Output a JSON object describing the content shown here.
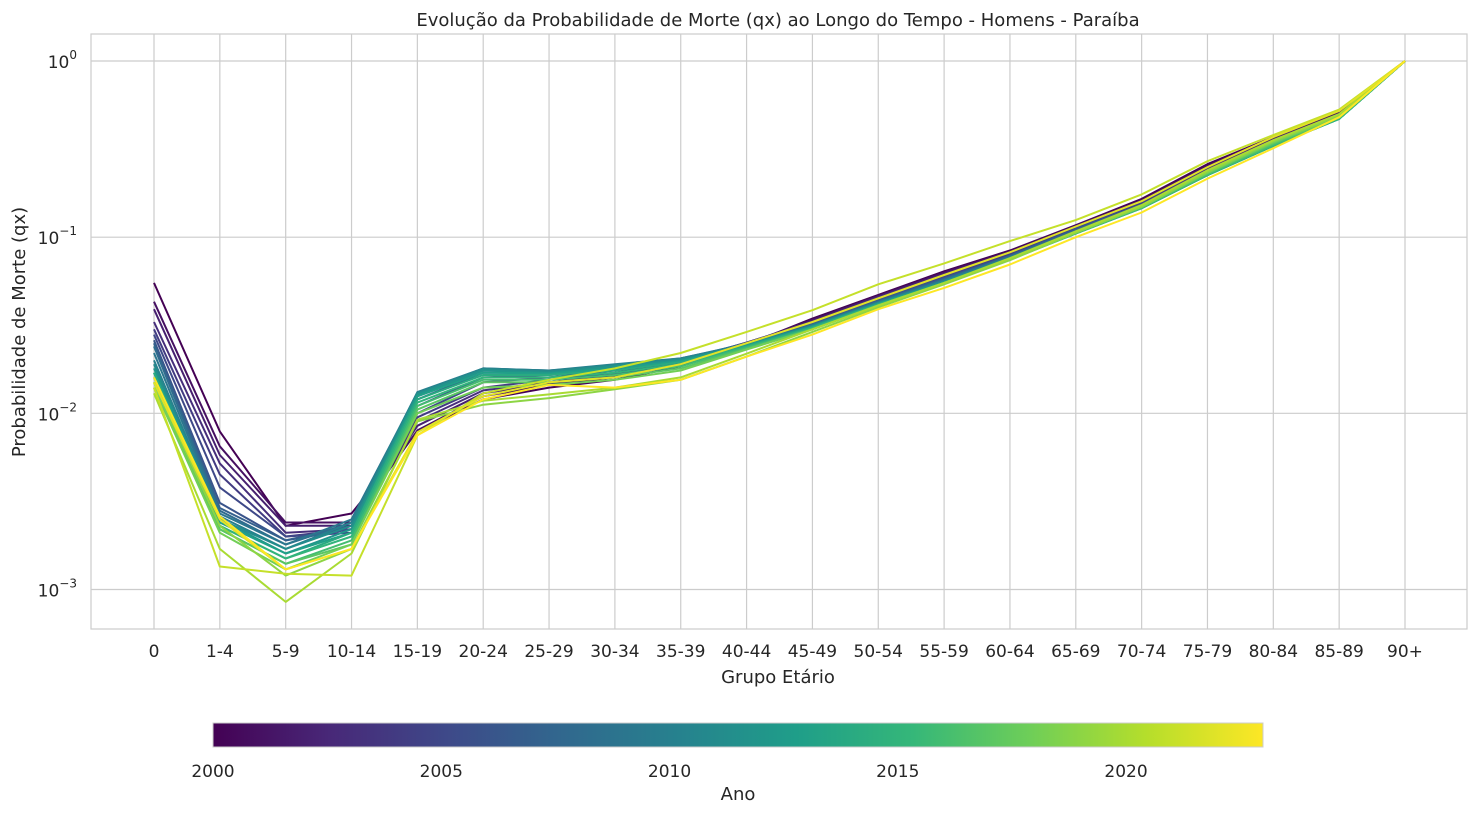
{
  "chart_data": {
    "type": "line",
    "title": "Evolução da Probabilidade de Morte (qx) ao Longo do Tempo - Homens - Paraíba",
    "xlabel": "Grupo Etário",
    "ylabel": "Probabilidade de Morte (qx)",
    "yscale": "log",
    "ylim": [
      0.0006,
      1.4
    ],
    "y_ticks": [
      {
        "value": 0.001,
        "base": "10",
        "exp": "−3"
      },
      {
        "value": 0.01,
        "base": "10",
        "exp": "−2"
      },
      {
        "value": 0.1,
        "base": "10",
        "exp": "−1"
      },
      {
        "value": 1,
        "base": "10",
        "exp": "0"
      }
    ],
    "grid": true,
    "categories": [
      "0",
      "1-4",
      "5-9",
      "10-14",
      "15-19",
      "20-24",
      "25-29",
      "30-34",
      "35-39",
      "40-44",
      "45-49",
      "50-54",
      "55-59",
      "60-64",
      "65-69",
      "70-74",
      "75-79",
      "80-84",
      "85-89",
      "90+"
    ],
    "colormap": "viridis",
    "colorbar": {
      "label": "Ano",
      "min": 2000,
      "max": 2023,
      "ticks": [
        "2000",
        "2005",
        "2010",
        "2015",
        "2020"
      ],
      "tick_values": [
        2000,
        2005,
        2010,
        2015,
        2020
      ],
      "colors": [
        "#440154",
        "#482878",
        "#3e4989",
        "#31688e",
        "#26828e",
        "#1f9e89",
        "#35b779",
        "#6ece58",
        "#b5de2b",
        "#fde725"
      ]
    },
    "series": [
      {
        "year": 2000,
        "values": [
          0.055,
          0.0079,
          0.0023,
          0.0027,
          0.0079,
          0.012,
          0.014,
          0.0155,
          0.0185,
          0.0245,
          0.0345,
          0.047,
          0.064,
          0.084,
          0.117,
          0.165,
          0.26,
          0.37,
          0.52,
          1.0
        ]
      },
      {
        "year": 2001,
        "values": [
          0.043,
          0.0065,
          0.0024,
          0.0024,
          0.008,
          0.0125,
          0.0145,
          0.016,
          0.019,
          0.0248,
          0.034,
          0.0465,
          0.063,
          0.083,
          0.116,
          0.162,
          0.255,
          0.365,
          0.51,
          1.0
        ]
      },
      {
        "year": 2002,
        "values": [
          0.039,
          0.0058,
          0.0023,
          0.0023,
          0.0085,
          0.013,
          0.0148,
          0.0163,
          0.0193,
          0.025,
          0.0335,
          0.046,
          0.062,
          0.082,
          0.115,
          0.16,
          0.25,
          0.36,
          0.5,
          1.0
        ]
      },
      {
        "year": 2003,
        "values": [
          0.033,
          0.0052,
          0.0021,
          0.0022,
          0.009,
          0.0135,
          0.015,
          0.0166,
          0.0196,
          0.0252,
          0.033,
          0.0455,
          0.061,
          0.081,
          0.114,
          0.158,
          0.245,
          0.355,
          0.495,
          1.0
        ]
      },
      {
        "year": 2004,
        "values": [
          0.03,
          0.0045,
          0.002,
          0.0022,
          0.0095,
          0.014,
          0.0155,
          0.017,
          0.0198,
          0.0252,
          0.0328,
          0.045,
          0.06,
          0.08,
          0.113,
          0.156,
          0.24,
          0.35,
          0.49,
          1.0
        ]
      },
      {
        "year": 2005,
        "values": [
          0.028,
          0.0038,
          0.002,
          0.0021,
          0.01,
          0.015,
          0.016,
          0.0175,
          0.02,
          0.025,
          0.0325,
          0.0445,
          0.059,
          0.079,
          0.112,
          0.154,
          0.238,
          0.345,
          0.485,
          1.0
        ]
      },
      {
        "year": 2006,
        "values": [
          0.026,
          0.0031,
          0.0019,
          0.0022,
          0.011,
          0.016,
          0.0165,
          0.0178,
          0.02,
          0.025,
          0.0322,
          0.044,
          0.0585,
          0.0785,
          0.111,
          0.153,
          0.235,
          0.34,
          0.48,
          1.0
        ]
      },
      {
        "year": 2007,
        "values": [
          0.025,
          0.0029,
          0.0019,
          0.0023,
          0.012,
          0.017,
          0.017,
          0.018,
          0.0202,
          0.025,
          0.032,
          0.0435,
          0.058,
          0.078,
          0.11,
          0.152,
          0.233,
          0.34,
          0.48,
          1.0
        ]
      },
      {
        "year": 2008,
        "values": [
          0.024,
          0.0028,
          0.0018,
          0.0024,
          0.0125,
          0.0175,
          0.0172,
          0.0183,
          0.0203,
          0.0248,
          0.0318,
          0.043,
          0.0575,
          0.0775,
          0.109,
          0.15,
          0.23,
          0.335,
          0.475,
          1.0
        ]
      },
      {
        "year": 2009,
        "values": [
          0.022,
          0.0027,
          0.0018,
          0.0025,
          0.013,
          0.018,
          0.0175,
          0.0186,
          0.0205,
          0.0248,
          0.0316,
          0.0428,
          0.057,
          0.077,
          0.108,
          0.149,
          0.228,
          0.335,
          0.475,
          1.0
        ]
      },
      {
        "year": 2010,
        "values": [
          0.02,
          0.0026,
          0.0017,
          0.0024,
          0.0132,
          0.018,
          0.0175,
          0.019,
          0.0205,
          0.0246,
          0.0315,
          0.0425,
          0.0565,
          0.0765,
          0.107,
          0.148,
          0.226,
          0.33,
          0.47,
          1.0
        ]
      },
      {
        "year": 2011,
        "values": [
          0.019,
          0.0025,
          0.0017,
          0.0023,
          0.013,
          0.0178,
          0.0173,
          0.0188,
          0.0203,
          0.0245,
          0.0313,
          0.0423,
          0.056,
          0.076,
          0.106,
          0.147,
          0.225,
          0.33,
          0.47,
          1.0
        ]
      },
      {
        "year": 2012,
        "values": [
          0.018,
          0.0025,
          0.0016,
          0.0022,
          0.0128,
          0.0175,
          0.017,
          0.0185,
          0.02,
          0.0244,
          0.0312,
          0.042,
          0.0555,
          0.0755,
          0.106,
          0.147,
          0.225,
          0.33,
          0.47,
          1.0
        ]
      },
      {
        "year": 2013,
        "values": [
          0.017,
          0.0024,
          0.0016,
          0.0021,
          0.0125,
          0.017,
          0.0168,
          0.018,
          0.0198,
          0.0243,
          0.031,
          0.0418,
          0.055,
          0.075,
          0.105,
          0.146,
          0.225,
          0.33,
          0.47,
          1.0
        ]
      },
      {
        "year": 2014,
        "values": [
          0.017,
          0.0023,
          0.0015,
          0.0021,
          0.012,
          0.0165,
          0.0165,
          0.0175,
          0.0195,
          0.024,
          0.0308,
          0.0415,
          0.055,
          0.075,
          0.105,
          0.146,
          0.225,
          0.33,
          0.47,
          1.0
        ]
      },
      {
        "year": 2015,
        "values": [
          0.016,
          0.0023,
          0.0015,
          0.002,
          0.0115,
          0.016,
          0.016,
          0.017,
          0.019,
          0.0238,
          0.0305,
          0.0413,
          0.0545,
          0.0745,
          0.105,
          0.146,
          0.225,
          0.33,
          0.47,
          1.0
        ]
      },
      {
        "year": 2016,
        "values": [
          0.015,
          0.0022,
          0.0014,
          0.0019,
          0.011,
          0.0155,
          0.0155,
          0.0165,
          0.0185,
          0.0235,
          0.0302,
          0.041,
          0.0545,
          0.0745,
          0.105,
          0.147,
          0.227,
          0.335,
          0.475,
          1.0
        ]
      },
      {
        "year": 2017,
        "values": [
          0.015,
          0.0022,
          0.0014,
          0.0018,
          0.0105,
          0.015,
          0.015,
          0.016,
          0.018,
          0.0232,
          0.03,
          0.041,
          0.055,
          0.075,
          0.106,
          0.148,
          0.23,
          0.34,
          0.48,
          1.0
        ]
      },
      {
        "year": 2018,
        "values": [
          0.014,
          0.0021,
          0.0013,
          0.0018,
          0.01,
          0.014,
          0.0145,
          0.0155,
          0.0175,
          0.023,
          0.03,
          0.041,
          0.055,
          0.075,
          0.107,
          0.149,
          0.232,
          0.345,
          0.485,
          1.0
        ]
      },
      {
        "year": 2019,
        "values": [
          0.015,
          0.0023,
          0.0012,
          0.0017,
          0.009,
          0.0112,
          0.0122,
          0.0137,
          0.0155,
          0.021,
          0.029,
          0.04,
          0.054,
          0.074,
          0.106,
          0.149,
          0.235,
          0.35,
          0.49,
          1.0
        ]
      },
      {
        "year": 2020,
        "values": [
          0.013,
          0.0017,
          0.00085,
          0.0016,
          0.0092,
          0.0118,
          0.0128,
          0.014,
          0.016,
          0.0218,
          0.03,
          0.041,
          0.055,
          0.076,
          0.108,
          0.152,
          0.24,
          0.355,
          0.5,
          1.0
        ]
      },
      {
        "year": 2021,
        "values": [
          0.014,
          0.00135,
          0.00123,
          0.0012,
          0.0075,
          0.013,
          0.0155,
          0.018,
          0.022,
          0.029,
          0.0385,
          0.054,
          0.071,
          0.095,
          0.125,
          0.175,
          0.27,
          0.38,
          0.53,
          1.0
        ]
      },
      {
        "year": 2022,
        "values": [
          0.015,
          0.0025,
          0.0013,
          0.0017,
          0.0078,
          0.0125,
          0.015,
          0.016,
          0.019,
          0.025,
          0.033,
          0.045,
          0.061,
          0.082,
          0.115,
          0.16,
          0.25,
          0.37,
          0.52,
          1.0
        ]
      },
      {
        "year": 2023,
        "values": [
          0.016,
          0.0026,
          0.0013,
          0.0017,
          0.0075,
          0.012,
          0.0145,
          0.014,
          0.0155,
          0.021,
          0.028,
          0.039,
          0.0515,
          0.07,
          0.1,
          0.138,
          0.215,
          0.32,
          0.48,
          1.0
        ]
      }
    ]
  }
}
